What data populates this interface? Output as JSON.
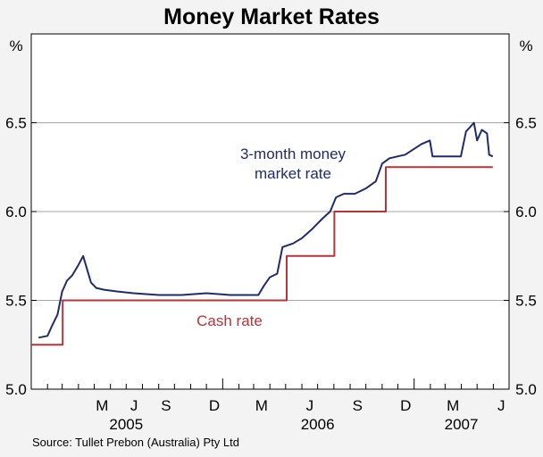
{
  "chart_data": {
    "type": "line",
    "title": "Money Market Rates",
    "ylabel_left": "%",
    "ylabel_right": "%",
    "ylim": [
      5.0,
      7.0
    ],
    "yticks": [
      "5.0",
      "5.5",
      "6.0",
      "6.5"
    ],
    "x_month_labels": [
      "M",
      "J",
      "S",
      "D",
      "M",
      "J",
      "S",
      "D",
      "M",
      "J"
    ],
    "x_year_labels": [
      "2005",
      "2006",
      "2007"
    ],
    "source": "Source: Tullet Prebon (Australia) Pty Ltd",
    "colors": {
      "money_market": "#1f2b6e",
      "cash": "#b8333a"
    },
    "annotations": {
      "money_market_line1": "3-month money",
      "money_market_line2": "market rate",
      "cash": "Cash rate"
    },
    "series": [
      {
        "name": "3-month money market rate",
        "key": "money_market",
        "points": [
          [
            "2005-01-15",
            5.29
          ],
          [
            "2005-02-01",
            5.3
          ],
          [
            "2005-02-10",
            5.36
          ],
          [
            "2005-02-20",
            5.42
          ],
          [
            "2005-03-01",
            5.55
          ],
          [
            "2005-03-10",
            5.61
          ],
          [
            "2005-03-20",
            5.64
          ],
          [
            "2005-04-01",
            5.7
          ],
          [
            "2005-04-10",
            5.75
          ],
          [
            "2005-04-18",
            5.67
          ],
          [
            "2005-04-25",
            5.6
          ],
          [
            "2005-05-05",
            5.57
          ],
          [
            "2005-05-20",
            5.56
          ],
          [
            "2005-06-15",
            5.55
          ],
          [
            "2005-07-15",
            5.54
          ],
          [
            "2005-09-01",
            5.53
          ],
          [
            "2005-10-15",
            5.53
          ],
          [
            "2005-12-01",
            5.54
          ],
          [
            "2006-01-15",
            5.53
          ],
          [
            "2006-02-15",
            5.53
          ],
          [
            "2006-03-10",
            5.53
          ],
          [
            "2006-03-20",
            5.58
          ],
          [
            "2006-04-01",
            5.63
          ],
          [
            "2006-04-15",
            5.65
          ],
          [
            "2006-04-25",
            5.8
          ],
          [
            "2006-05-15",
            5.82
          ],
          [
            "2006-06-01",
            5.85
          ],
          [
            "2006-06-20",
            5.9
          ],
          [
            "2006-07-10",
            5.96
          ],
          [
            "2006-07-25",
            6.0
          ],
          [
            "2006-08-05",
            6.08
          ],
          [
            "2006-08-20",
            6.1
          ],
          [
            "2006-09-10",
            6.1
          ],
          [
            "2006-10-01",
            6.13
          ],
          [
            "2006-10-20",
            6.17
          ],
          [
            "2006-11-01",
            6.27
          ],
          [
            "2006-11-15",
            6.3
          ],
          [
            "2006-12-15",
            6.32
          ],
          [
            "2007-01-15",
            6.38
          ],
          [
            "2007-01-31",
            6.4
          ],
          [
            "2007-02-05",
            6.31
          ],
          [
            "2007-03-01",
            6.31
          ],
          [
            "2007-03-31",
            6.31
          ],
          [
            "2007-04-10",
            6.45
          ],
          [
            "2007-04-25",
            6.5
          ],
          [
            "2007-05-01",
            6.4
          ],
          [
            "2007-05-10",
            6.46
          ],
          [
            "2007-05-20",
            6.44
          ],
          [
            "2007-05-24",
            6.32
          ],
          [
            "2007-05-31",
            6.31
          ]
        ]
      },
      {
        "name": "Cash rate",
        "key": "cash",
        "step": true,
        "points": [
          [
            "2005-01-01",
            5.25
          ],
          [
            "2005-03-02",
            5.5
          ],
          [
            "2006-05-03",
            5.75
          ],
          [
            "2006-08-02",
            6.0
          ],
          [
            "2006-11-08",
            6.25
          ],
          [
            "2007-05-31",
            6.25
          ]
        ]
      }
    ]
  }
}
